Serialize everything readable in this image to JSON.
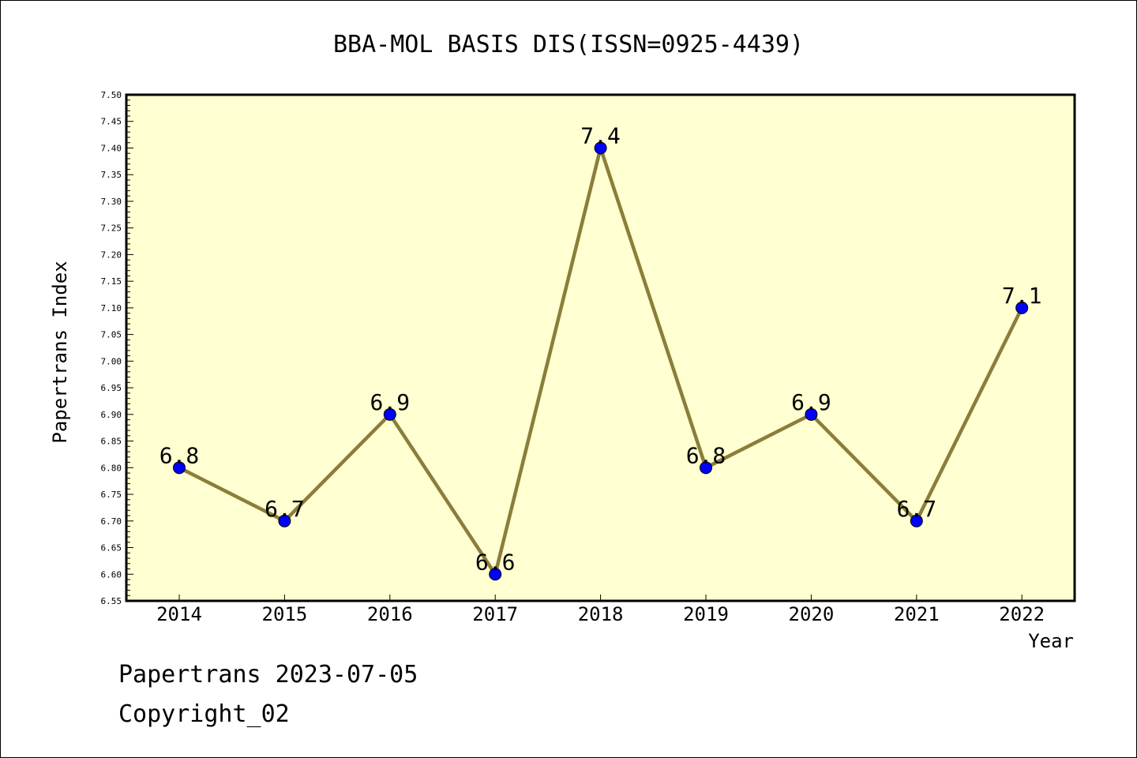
{
  "chart_data": {
    "type": "line",
    "title": "BBA-MOL BASIS DIS(ISSN=0925-4439)",
    "xlabel": "Year",
    "ylabel": "Papertrans Index",
    "categories": [
      "2014",
      "2015",
      "2016",
      "2017",
      "2018",
      "2019",
      "2020",
      "2021",
      "2022"
    ],
    "series": [
      {
        "values": [
          6.8,
          6.7,
          6.9,
          6.6,
          7.4,
          6.8,
          6.9,
          6.7,
          7.1
        ],
        "labels": [
          "6.8",
          "6.7",
          "6.9",
          "6.6",
          "7.4",
          "6.8",
          "6.9",
          "6.7",
          "7.1"
        ]
      }
    ],
    "ylim": [
      6.55,
      7.5
    ],
    "yticks": [
      "6.55",
      "6.60",
      "6.65",
      "6.70",
      "6.75",
      "6.80",
      "6.85",
      "6.90",
      "6.95",
      "7.00",
      "7.05",
      "7.10",
      "7.15",
      "7.20",
      "7.25",
      "7.30",
      "7.35",
      "7.40",
      "7.45",
      "7.50"
    ],
    "grid": false,
    "colors": {
      "plot_background": "#ffffd2",
      "line": "#8b7d3a",
      "marker": "#0000ff"
    }
  },
  "footer": {
    "line1": "Papertrans 2023-07-05",
    "line2": "Copyright_02"
  }
}
